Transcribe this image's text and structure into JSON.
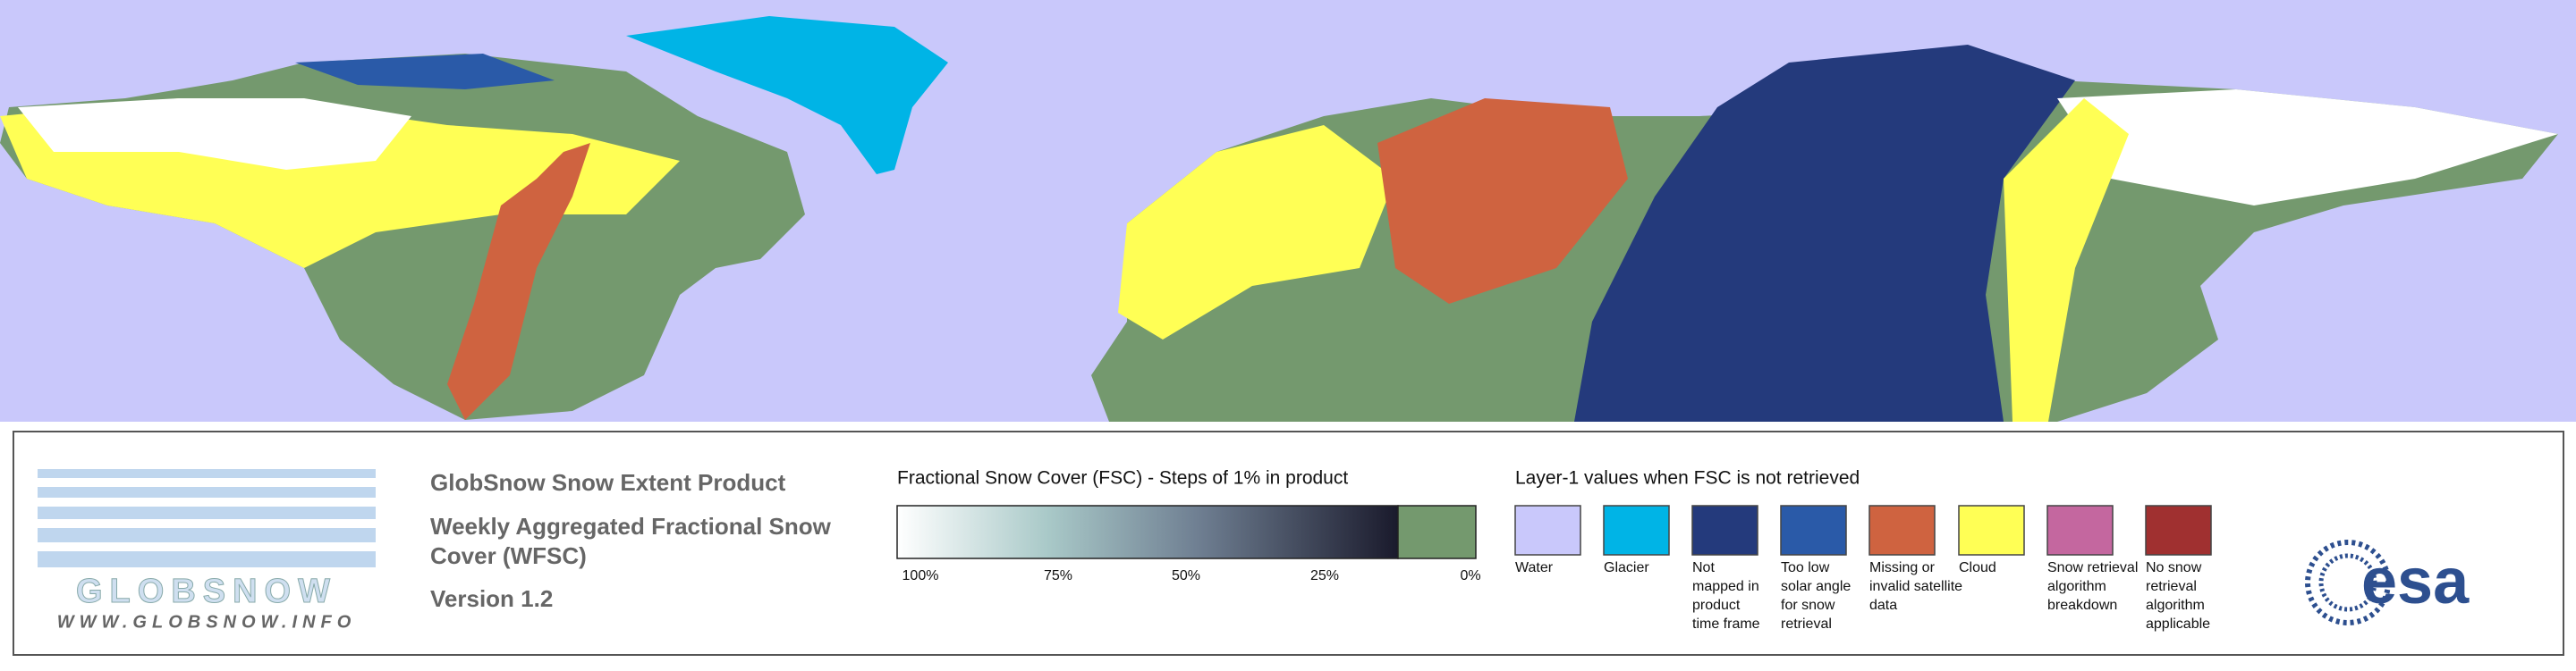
{
  "header": {
    "title": "GlobSnow Snow Extent Product",
    "subtitle_lines": [
      "Weekly Aggregated Fractional Snow",
      "Cover (WFSC)"
    ],
    "version": "Version 1.2"
  },
  "logo": {
    "name": "GLOBSNOW",
    "url": "WWW.GLOBSNOW.INFO",
    "agency": "esa"
  },
  "fsc_legend": {
    "title": "Fractional Snow Cover (FSC) - Steps of 1% in product",
    "tick_labels": [
      "100%",
      "75%",
      "50%",
      "25%",
      "0%"
    ],
    "zero_color": "#74996e"
  },
  "layer_legend": {
    "title": "Layer-1 values when FSC is not retrieved",
    "classes": [
      {
        "lines": [
          "Water"
        ],
        "color": "#c9c8fb"
      },
      {
        "lines": [
          "Glacier"
        ],
        "color": "#00b4e6"
      },
      {
        "lines": [
          "Not",
          "mapped in",
          "product",
          "time frame"
        ],
        "color": "#243a7c"
      },
      {
        "lines": [
          "Too low",
          "solar angle",
          "for snow",
          "retrieval"
        ],
        "color": "#2a5aa8"
      },
      {
        "lines": [
          "Missing or",
          "invalid satellite",
          "data"
        ],
        "color": "#cf6340"
      },
      {
        "lines": [
          "Cloud"
        ],
        "color": "#ffff55"
      },
      {
        "lines": [
          "Snow retrieval",
          "algorithm",
          "breakdown"
        ],
        "color": "#c4679f"
      },
      {
        "lines": [
          "No snow",
          "retrieval",
          "algorithm",
          "applicable"
        ],
        "color": "#a03030"
      }
    ]
  }
}
